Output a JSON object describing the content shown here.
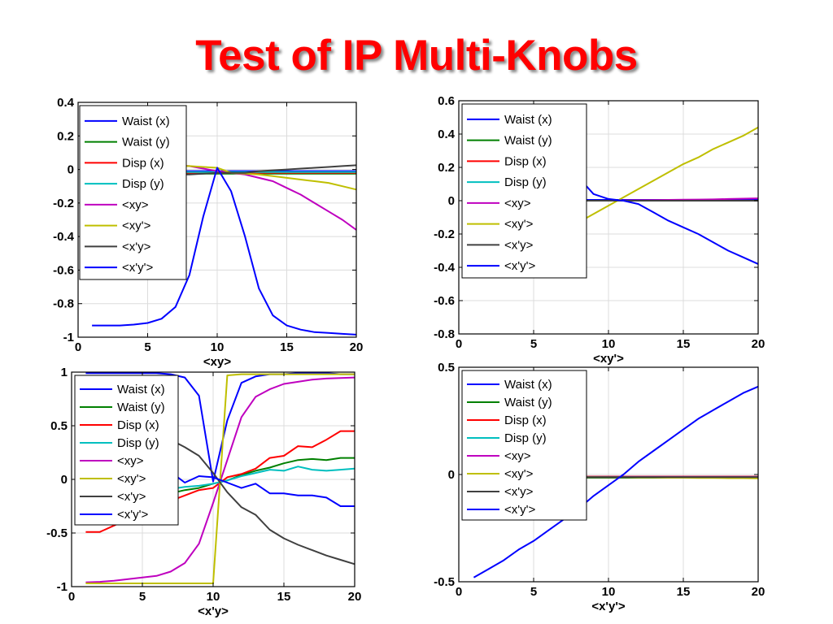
{
  "title": "Test of IP Multi-Knobs",
  "legend_names": [
    "Waist (x)",
    "Waist (y)",
    "Disp (x)",
    "Disp (y)",
    "<xy>",
    "<xy'>",
    "<x'y>",
    "<x'y'>"
  ],
  "legend_colors": [
    "#0000ff",
    "#008000",
    "#ff0000",
    "#00bfbf",
    "#bf00bf",
    "#bfbf00",
    "#404040",
    "#0000ff"
  ],
  "chart_data": [
    {
      "type": "line",
      "xlabel": "<xy>",
      "xlim": [
        0,
        20
      ],
      "ylim": [
        -1,
        0.4
      ],
      "xticks": [
        0,
        5,
        10,
        15,
        20
      ],
      "yticks": [
        -1,
        -0.8,
        -0.6,
        -0.4,
        -0.2,
        0,
        0.2,
        0.4
      ],
      "xtick_labels": [
        "0",
        "5",
        "10",
        "15",
        "20"
      ],
      "ytick_labels": [
        "-1",
        "-0.8",
        "-0.6",
        "-0.4",
        "-0.2",
        "0",
        "0.2",
        "0.4"
      ],
      "grid": true,
      "legend": "top-left",
      "x": [
        1,
        2,
        3,
        4,
        5,
        6,
        7,
        8,
        9,
        10,
        11,
        12,
        13,
        14,
        15,
        16,
        17,
        18,
        19,
        20
      ],
      "series": [
        {
          "name": "Waist (x)",
          "color": "#0000ff",
          "values": [
            -0.01,
            -0.01,
            -0.01,
            -0.01,
            -0.01,
            -0.01,
            -0.01,
            -0.01,
            -0.01,
            -0.01,
            -0.01,
            -0.01,
            -0.01,
            -0.01,
            -0.01,
            -0.01,
            -0.01,
            -0.01,
            -0.01,
            -0.01
          ]
        },
        {
          "name": "Waist (y)",
          "color": "#008000",
          "values": [
            -0.025,
            -0.025,
            -0.025,
            -0.025,
            -0.025,
            -0.025,
            -0.025,
            -0.025,
            -0.025,
            -0.025,
            -0.025,
            -0.025,
            -0.025,
            -0.025,
            -0.025,
            -0.025,
            -0.025,
            -0.025,
            -0.025,
            -0.025
          ]
        },
        {
          "name": "Disp (x)",
          "color": "#ff0000",
          "values": [
            -0.02,
            -0.02,
            -0.02,
            -0.02,
            -0.02,
            -0.02,
            -0.02,
            -0.02,
            -0.02,
            -0.02,
            -0.02,
            -0.02,
            -0.02,
            -0.02,
            -0.02,
            -0.02,
            -0.02,
            -0.02,
            -0.02,
            -0.02
          ]
        },
        {
          "name": "Disp (y)",
          "color": "#00bfbf",
          "values": [
            -0.015,
            -0.015,
            -0.015,
            -0.015,
            -0.015,
            -0.015,
            -0.015,
            -0.015,
            -0.015,
            -0.015,
            -0.015,
            -0.015,
            -0.015,
            -0.015,
            -0.015,
            -0.015,
            -0.015,
            -0.015,
            -0.015,
            -0.015
          ]
        },
        {
          "name": "<xy>",
          "color": "#bf00bf",
          "values": [
            0.03,
            0.03,
            0.03,
            0.03,
            0.03,
            0.03,
            0.025,
            0.02,
            0.005,
            -0.01,
            -0.02,
            -0.03,
            -0.05,
            -0.07,
            -0.11,
            -0.15,
            -0.2,
            -0.25,
            -0.3,
            -0.36
          ]
        },
        {
          "name": "<xy'>",
          "color": "#bfbf00",
          "values": [
            0.02,
            0.02,
            0.02,
            0.02,
            0.02,
            0.02,
            0.02,
            0.02,
            0.015,
            0.01,
            -0.02,
            -0.025,
            -0.03,
            -0.04,
            -0.05,
            -0.06,
            -0.07,
            -0.08,
            -0.1,
            -0.12
          ]
        },
        {
          "name": "<x'y>",
          "color": "#404040",
          "values": [
            -0.03,
            -0.03,
            -0.03,
            -0.03,
            -0.03,
            -0.03,
            -0.03,
            -0.03,
            -0.025,
            -0.02,
            -0.02,
            -0.02,
            -0.01,
            -0.005,
            0.0,
            0.005,
            0.01,
            0.015,
            0.02,
            0.025
          ]
        },
        {
          "name": "<x'y'>",
          "color": "#0000ff",
          "values": [
            -0.93,
            -0.93,
            -0.93,
            -0.925,
            -0.915,
            -0.89,
            -0.82,
            -0.63,
            -0.28,
            0.01,
            -0.13,
            -0.4,
            -0.71,
            -0.87,
            -0.93,
            -0.955,
            -0.97,
            -0.975,
            -0.98,
            -0.985
          ]
        }
      ]
    },
    {
      "type": "line",
      "xlabel": "<xy'>",
      "xlim": [
        0,
        20
      ],
      "ylim": [
        -0.8,
        0.6
      ],
      "xticks": [
        0,
        5,
        10,
        15,
        20
      ],
      "yticks": [
        -0.8,
        -0.6,
        -0.4,
        -0.2,
        0,
        0.2,
        0.4,
        0.6
      ],
      "xtick_labels": [
        "0",
        "5",
        "10",
        "15",
        "20"
      ],
      "ytick_labels": [
        "-0.8",
        "-0.6",
        "-0.4",
        "-0.2",
        "0",
        "0.2",
        "0.4",
        "0.6"
      ],
      "grid": true,
      "legend": "top-left",
      "x": [
        1,
        2,
        3,
        4,
        5,
        6,
        7,
        8,
        9,
        10,
        11,
        12,
        13,
        14,
        15,
        16,
        17,
        18,
        19,
        20
      ],
      "series": [
        {
          "name": "Waist (x)",
          "color": "#0000ff",
          "values": [
            0.005,
            0.005,
            0.005,
            0.005,
            0.005,
            0.005,
            0.005,
            0.005,
            0.005,
            0.005,
            0.005,
            0.005,
            0.005,
            0.005,
            0.005,
            0.005,
            0.005,
            0.005,
            0.005,
            0.005
          ]
        },
        {
          "name": "Waist (y)",
          "color": "#008000",
          "values": [
            0.0,
            0.0,
            0.0,
            0.0,
            0.0,
            0.0,
            0.0,
            0.0,
            0.0,
            0.0,
            0.0,
            0.0,
            0.0,
            0.0,
            0.0,
            0.0,
            0.0,
            0.0,
            0.0,
            0.0
          ]
        },
        {
          "name": "Disp (x)",
          "color": "#ff0000",
          "values": [
            0.0,
            0.0,
            0.0,
            0.0,
            0.0,
            0.0,
            0.0,
            0.0,
            0.0,
            0.0,
            0.0,
            0.0,
            0.0,
            0.0,
            0.0,
            0.0,
            0.0,
            0.0,
            0.0,
            0.0
          ]
        },
        {
          "name": "Disp (y)",
          "color": "#00bfbf",
          "values": [
            0.0,
            0.0,
            0.0,
            0.0,
            0.0,
            0.0,
            0.0,
            0.0,
            0.0,
            0.0,
            0.0,
            0.0,
            0.0,
            0.0,
            0.0,
            0.0,
            0.0,
            0.0,
            0.0,
            0.0
          ]
        },
        {
          "name": "<xy>",
          "color": "#bf00bf",
          "values": [
            0.0,
            0.0,
            0.0,
            0.0,
            0.0,
            0.0,
            0.0,
            0.0,
            0.0,
            0.0,
            0.002,
            0.003,
            0.004,
            0.005,
            0.006,
            0.007,
            0.008,
            0.01,
            0.012,
            0.014
          ]
        },
        {
          "name": "<xy'>",
          "color": "#bfbf00",
          "values": [
            -0.43,
            -0.41,
            -0.38,
            -0.34,
            -0.3,
            -0.25,
            -0.19,
            -0.13,
            -0.08,
            -0.03,
            0.02,
            0.07,
            0.12,
            0.17,
            0.22,
            0.26,
            0.31,
            0.35,
            0.39,
            0.44
          ]
        },
        {
          "name": "<x'y>",
          "color": "#404040",
          "values": [
            0.0,
            0.0,
            0.0,
            0.0,
            0.0,
            0.0,
            0.0,
            0.0,
            0.0,
            0.0,
            0.0,
            0.0,
            0.0,
            0.0,
            0.0,
            0.0,
            0.0,
            0.0,
            0.0,
            0.0
          ]
        },
        {
          "name": "<x'y'>",
          "color": "#0000ff",
          "values": [
            0.4,
            0.38,
            0.36,
            0.34,
            0.31,
            0.27,
            0.22,
            0.14,
            0.04,
            0.01,
            0.0,
            -0.02,
            -0.07,
            -0.12,
            -0.16,
            -0.2,
            -0.25,
            -0.3,
            -0.34,
            -0.38
          ]
        }
      ]
    },
    {
      "type": "line",
      "xlabel": "<x'y>",
      "xlim": [
        0,
        20
      ],
      "ylim": [
        -1,
        1
      ],
      "xticks": [
        0,
        5,
        10,
        15,
        20
      ],
      "yticks": [
        -1,
        -0.5,
        0,
        0.5,
        1
      ],
      "xtick_labels": [
        "0",
        "5",
        "10",
        "15",
        "20"
      ],
      "ytick_labels": [
        "-1",
        "-0.5",
        "0",
        "0.5",
        "1"
      ],
      "grid": true,
      "legend": "top-left",
      "x": [
        1,
        2,
        3,
        4,
        5,
        6,
        7,
        8,
        9,
        10,
        11,
        12,
        13,
        14,
        15,
        16,
        17,
        18,
        19,
        20
      ],
      "series": [
        {
          "name": "Waist (x)",
          "color": "#0000ff",
          "values": [
            0.99,
            0.99,
            0.99,
            0.99,
            0.99,
            0.99,
            0.98,
            0.95,
            0.78,
            -0.02,
            0.55,
            0.9,
            0.96,
            0.98,
            0.98,
            0.99,
            0.99,
            0.99,
            0.98,
            0.98
          ]
        },
        {
          "name": "Waist (y)",
          "color": "#008000",
          "values": [
            -0.3,
            -0.28,
            -0.26,
            -0.24,
            -0.2,
            -0.16,
            -0.13,
            -0.1,
            -0.08,
            -0.04,
            -0.01,
            0.04,
            0.08,
            0.11,
            0.15,
            0.18,
            0.19,
            0.18,
            0.2,
            0.2
          ]
        },
        {
          "name": "Disp (x)",
          "color": "#ff0000",
          "values": [
            -0.49,
            -0.49,
            -0.43,
            -0.37,
            -0.31,
            -0.25,
            -0.2,
            -0.15,
            -0.1,
            -0.08,
            0.02,
            0.05,
            0.1,
            0.2,
            0.22,
            0.31,
            0.3,
            0.37,
            0.45,
            0.45
          ]
        },
        {
          "name": "Disp (y)",
          "color": "#00bfbf",
          "values": [
            -0.2,
            -0.18,
            -0.16,
            -0.14,
            -0.12,
            -0.1,
            -0.09,
            -0.07,
            -0.06,
            -0.04,
            -0.01,
            0.03,
            0.06,
            0.09,
            0.08,
            0.12,
            0.09,
            0.08,
            0.09,
            0.1
          ]
        },
        {
          "name": "<xy>",
          "color": "#bf00bf",
          "values": [
            -0.96,
            -0.955,
            -0.945,
            -0.93,
            -0.915,
            -0.9,
            -0.86,
            -0.78,
            -0.6,
            -0.22,
            0.18,
            0.58,
            0.77,
            0.84,
            0.89,
            0.91,
            0.93,
            0.94,
            0.945,
            0.95
          ]
        },
        {
          "name": "<xy'>",
          "color": "#bfbf00",
          "values": [
            -0.97,
            -0.97,
            -0.97,
            -0.97,
            -0.97,
            -0.97,
            -0.97,
            -0.97,
            -0.97,
            -0.97,
            0.97,
            0.98,
            0.98,
            0.98,
            0.98,
            0.98,
            0.98,
            0.98,
            0.98,
            0.98
          ]
        },
        {
          "name": "<x'y>",
          "color": "#404040",
          "values": [
            0.79,
            0.73,
            0.66,
            0.59,
            0.52,
            0.45,
            0.37,
            0.3,
            0.22,
            0.06,
            -0.12,
            -0.26,
            -0.33,
            -0.47,
            -0.55,
            -0.61,
            -0.66,
            -0.71,
            -0.75,
            -0.79
          ]
        },
        {
          "name": "<x'y'>",
          "color": "#0000ff",
          "values": [
            0.24,
            0.24,
            0.22,
            0.2,
            0.15,
            0.12,
            0.07,
            -0.03,
            0.03,
            0.02,
            -0.03,
            -0.08,
            -0.04,
            -0.13,
            -0.13,
            -0.15,
            -0.15,
            -0.17,
            -0.25,
            -0.25
          ]
        }
      ]
    },
    {
      "type": "line",
      "xlabel": "<x'y'>",
      "xlim": [
        0,
        20
      ],
      "ylim": [
        -0.5,
        0.5
      ],
      "xticks": [
        0,
        5,
        10,
        15,
        20
      ],
      "yticks": [
        -0.5,
        0,
        0.5
      ],
      "xtick_labels": [
        "0",
        "5",
        "10",
        "15",
        "20"
      ],
      "ytick_labels": [
        "-0.5",
        "0",
        "0.5"
      ],
      "grid": true,
      "legend": "top-left",
      "x": [
        1,
        2,
        3,
        4,
        5,
        6,
        7,
        8,
        9,
        10,
        11,
        12,
        13,
        14,
        15,
        16,
        17,
        18,
        19,
        20
      ],
      "series": [
        {
          "name": "Waist (x)",
          "color": "#0000ff",
          "values": [
            -0.01,
            -0.01,
            -0.01,
            -0.01,
            -0.01,
            -0.01,
            -0.01,
            -0.01,
            -0.01,
            -0.01,
            -0.01,
            -0.01,
            -0.01,
            -0.01,
            -0.01,
            -0.01,
            -0.01,
            -0.01,
            -0.01,
            -0.01
          ]
        },
        {
          "name": "Waist (y)",
          "color": "#008000",
          "values": [
            -0.015,
            -0.015,
            -0.015,
            -0.015,
            -0.015,
            -0.015,
            -0.015,
            -0.015,
            -0.015,
            -0.015,
            -0.015,
            -0.015,
            -0.015,
            -0.015,
            -0.015,
            -0.015,
            -0.015,
            -0.015,
            -0.015,
            -0.015
          ]
        },
        {
          "name": "Disp (x)",
          "color": "#ff0000",
          "values": [
            -0.01,
            -0.01,
            -0.01,
            -0.01,
            -0.01,
            -0.01,
            -0.01,
            -0.01,
            -0.01,
            -0.01,
            -0.01,
            -0.01,
            -0.01,
            -0.01,
            -0.01,
            -0.01,
            -0.01,
            -0.01,
            -0.01,
            -0.01
          ]
        },
        {
          "name": "Disp (y)",
          "color": "#00bfbf",
          "values": [
            -0.012,
            -0.012,
            -0.012,
            -0.012,
            -0.012,
            -0.012,
            -0.012,
            -0.012,
            -0.012,
            -0.012,
            -0.012,
            -0.012,
            -0.012,
            -0.012,
            -0.012,
            -0.012,
            -0.012,
            -0.012,
            -0.012,
            -0.012
          ]
        },
        {
          "name": "<xy>",
          "color": "#bf00bf",
          "values": [
            -0.012,
            -0.012,
            -0.012,
            -0.012,
            -0.012,
            -0.012,
            -0.012,
            -0.012,
            -0.012,
            -0.012,
            -0.012,
            -0.012,
            -0.012,
            -0.012,
            -0.012,
            -0.012,
            -0.012,
            -0.012,
            -0.012,
            -0.012
          ]
        },
        {
          "name": "<xy'>",
          "color": "#bfbf00",
          "values": [
            -0.01,
            -0.01,
            -0.01,
            -0.01,
            -0.01,
            -0.01,
            -0.01,
            -0.012,
            -0.012,
            -0.013,
            -0.013,
            -0.014,
            -0.014,
            -0.015,
            -0.015,
            -0.016,
            -0.016,
            -0.017,
            -0.017,
            -0.018
          ]
        },
        {
          "name": "<x'y>",
          "color": "#404040",
          "values": [
            -0.012,
            -0.012,
            -0.012,
            -0.012,
            -0.012,
            -0.012,
            -0.012,
            -0.012,
            -0.012,
            -0.012,
            -0.012,
            -0.012,
            -0.012,
            -0.012,
            -0.012,
            -0.012,
            -0.012,
            -0.012,
            -0.012,
            -0.012
          ]
        },
        {
          "name": "<x'y'>",
          "color": "#0000ff",
          "values": [
            -0.48,
            -0.44,
            -0.4,
            -0.35,
            -0.31,
            -0.26,
            -0.21,
            -0.16,
            -0.1,
            -0.05,
            0.0,
            0.06,
            0.11,
            0.16,
            0.21,
            0.26,
            0.3,
            0.34,
            0.38,
            0.41
          ]
        }
      ]
    }
  ]
}
